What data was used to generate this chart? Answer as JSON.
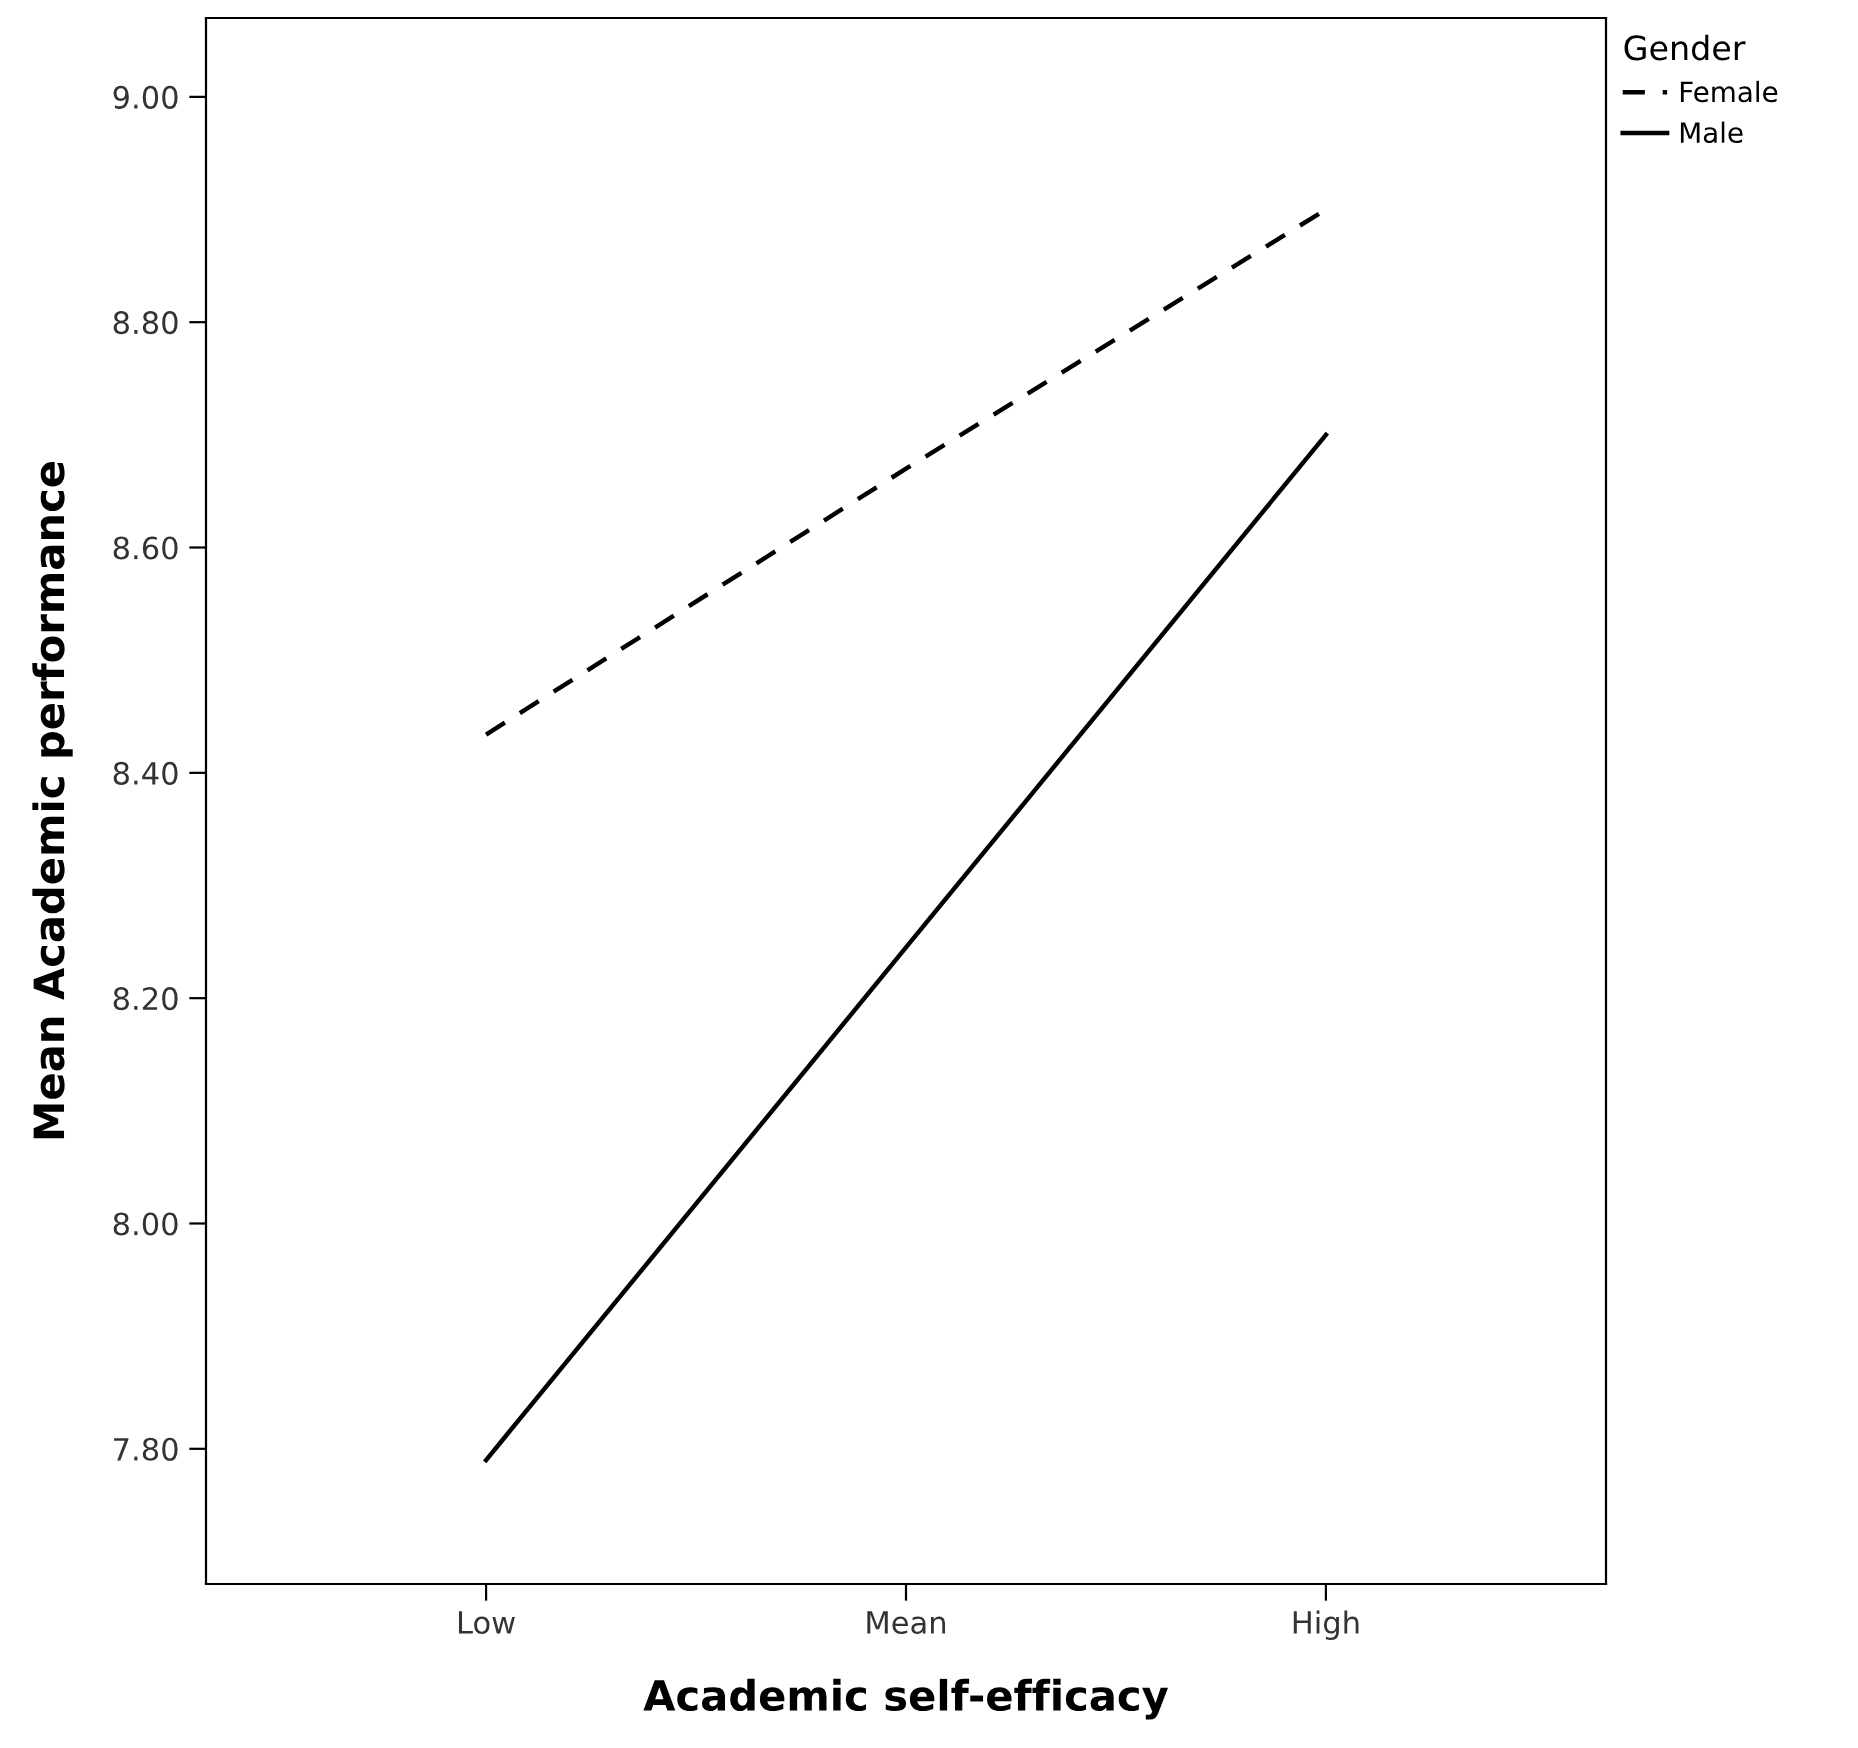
{
  "chart_data": {
    "type": "line",
    "xlabel": "Academic self-efficacy",
    "ylabel": "Mean Academic performance",
    "legend_title": "Gender",
    "categories": [
      "Low",
      "Mean",
      "High"
    ],
    "series": [
      {
        "name": "Female",
        "color": "#000000",
        "line_style": "dashed",
        "values": [
          8.434,
          8.67,
          8.9
        ]
      },
      {
        "name": "Male",
        "color": "#000000",
        "line_style": "solid",
        "values": [
          7.79,
          8.245,
          8.7
        ]
      }
    ],
    "ylim": [
      7.68,
      9.07
    ],
    "yticks": [
      {
        "value": 7.8,
        "label": "7.80"
      },
      {
        "value": 8.0,
        "label": "8.00"
      },
      {
        "value": 8.2,
        "label": "8.20"
      },
      {
        "value": 8.4,
        "label": "8.40"
      },
      {
        "value": 8.6,
        "label": "8.60"
      },
      {
        "value": 8.8,
        "label": "8.80"
      },
      {
        "value": 9.0,
        "label": "9.00"
      }
    ],
    "grid": false,
    "legend": "top right",
    "marker": "none"
  }
}
